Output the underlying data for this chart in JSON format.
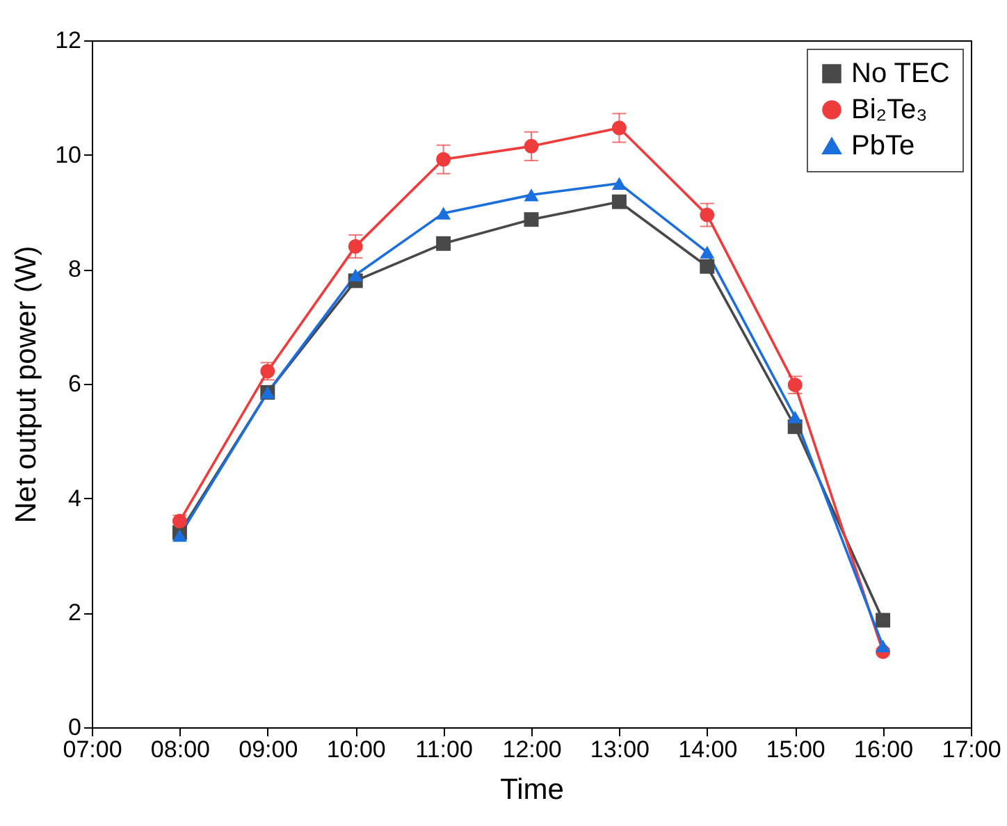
{
  "chart_data": {
    "type": "line",
    "xlabel": "Time",
    "ylabel": "Net output power (W)",
    "x": [
      8,
      9,
      10,
      11,
      12,
      13,
      14,
      15,
      16
    ],
    "xlim": [
      7,
      17
    ],
    "xticks": [
      {
        "value": 7,
        "label": "07:00"
      },
      {
        "value": 8,
        "label": "08:00"
      },
      {
        "value": 9,
        "label": "09:00"
      },
      {
        "value": 10,
        "label": "10:00"
      },
      {
        "value": 11,
        "label": "11:00"
      },
      {
        "value": 12,
        "label": "12:00"
      },
      {
        "value": 13,
        "label": "13:00"
      },
      {
        "value": 14,
        "label": "14:00"
      },
      {
        "value": 15,
        "label": "15:00"
      },
      {
        "value": 16,
        "label": "16:00"
      },
      {
        "value": 17,
        "label": "17:00"
      }
    ],
    "ylim": [
      0,
      12
    ],
    "yticks": [
      0,
      2,
      4,
      6,
      8,
      10,
      12
    ],
    "grid": false,
    "legend": "top right",
    "series": [
      {
        "name": "No TEC",
        "color": "#484848",
        "marker": "square",
        "values": [
          3.4,
          5.85,
          7.8,
          8.45,
          8.87,
          9.18,
          8.05,
          5.25,
          1.87
        ]
      },
      {
        "name": "Bi₂Te₃",
        "color": "#ee3b3b",
        "marker": "circle",
        "values": [
          3.6,
          6.22,
          8.4,
          9.92,
          10.15,
          10.47,
          8.95,
          5.98,
          1.32
        ],
        "errors": [
          0.1,
          0.15,
          0.2,
          0.25,
          0.25,
          0.25,
          0.2,
          0.15,
          0.05
        ]
      },
      {
        "name": "PbTe",
        "color": "#1a6fdc",
        "marker": "triangle",
        "values": [
          3.35,
          5.85,
          7.9,
          8.98,
          9.3,
          9.5,
          8.3,
          5.42,
          1.42
        ]
      }
    ]
  }
}
